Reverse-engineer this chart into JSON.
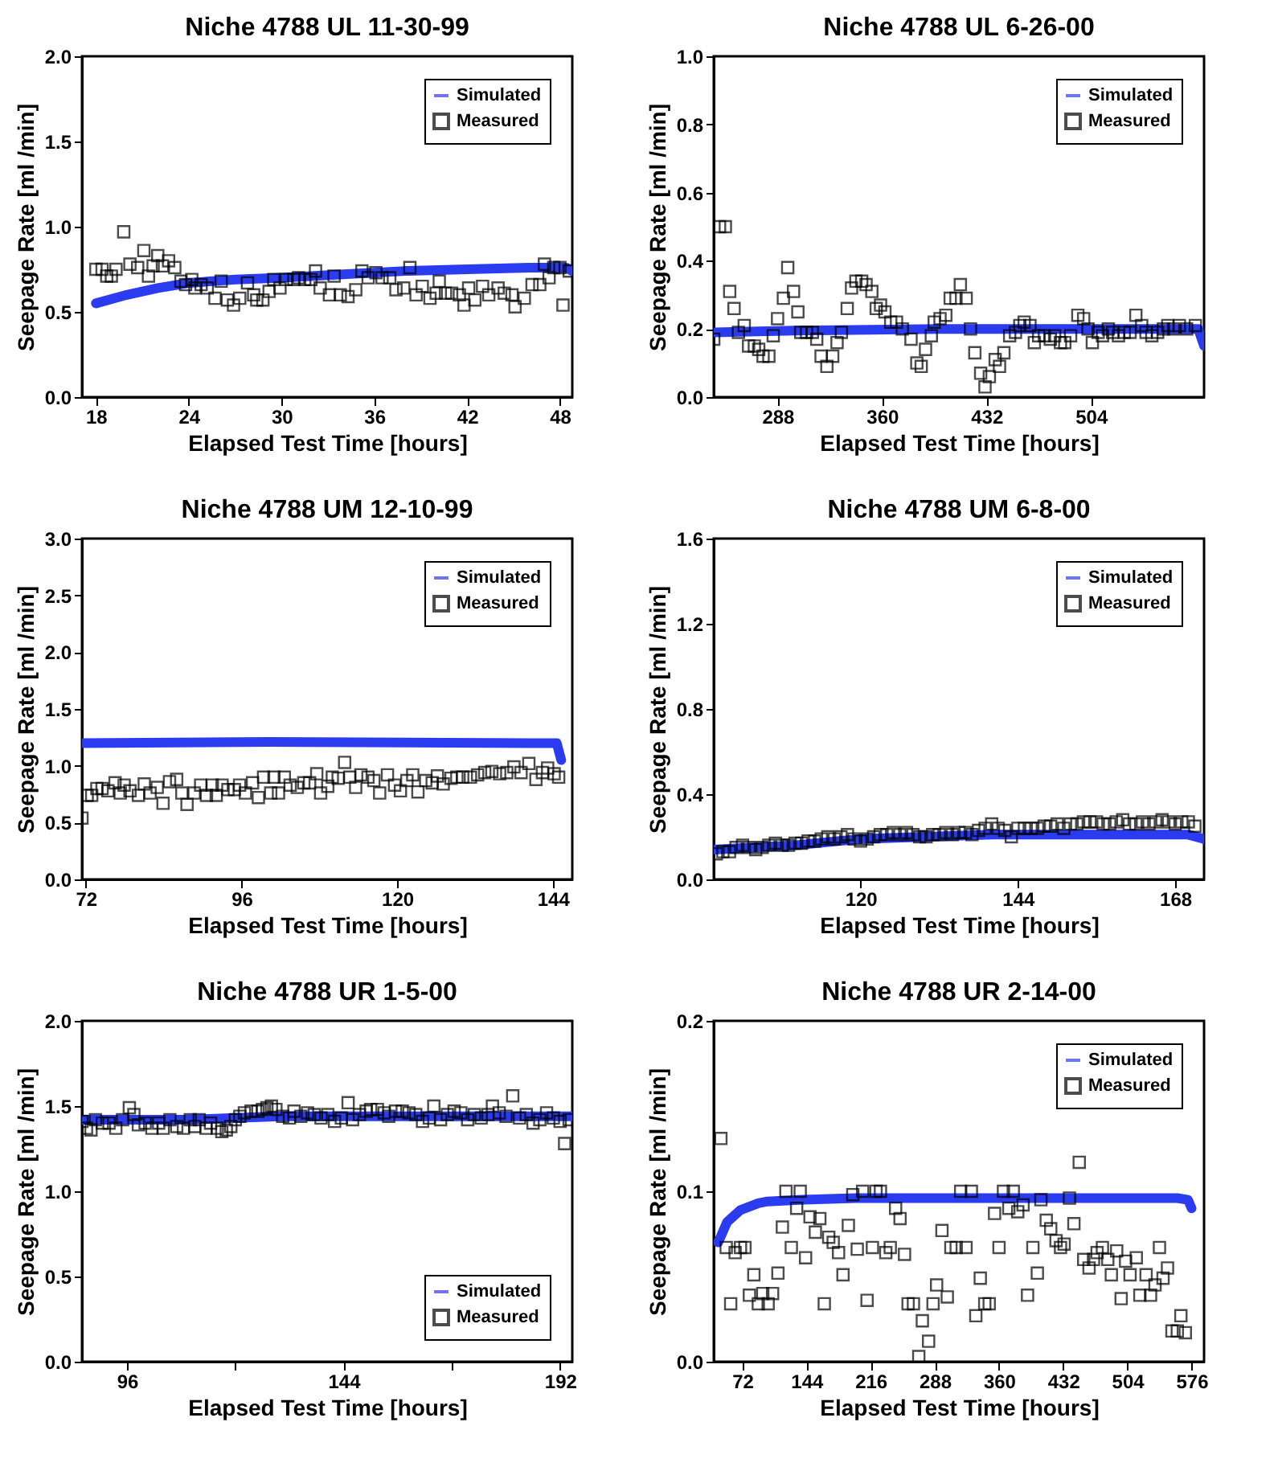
{
  "chart_data": [
    {
      "type": "line",
      "title": "Niche 4788 UL 11-30-99",
      "xlabel": "Elapsed Test Time [hours]",
      "ylabel": "Seepage Rate [ml /min]",
      "xlim": [
        17.1,
        48.8
      ],
      "xticks": [
        18,
        24,
        30,
        36,
        42,
        48
      ],
      "ylim": [
        0,
        2
      ],
      "yticks": [
        {
          "value": 0,
          "label": "0.0"
        },
        {
          "value": 0.5,
          "label": "0.5"
        },
        {
          "value": 1,
          "label": "1.0"
        },
        {
          "value": 1.5,
          "label": "1.5"
        },
        {
          "value": 2,
          "label": "2.0"
        }
      ],
      "legend": "top right",
      "line_style": "solid",
      "series": [
        {
          "name": "Simulated",
          "type": "line",
          "color": "#2b3bf0",
          "x": [
            18,
            20,
            22,
            24,
            27,
            30,
            34,
            38,
            42,
            46,
            48.4,
            48.8
          ],
          "values": [
            0.55,
            0.6,
            0.64,
            0.67,
            0.69,
            0.7,
            0.72,
            0.74,
            0.75,
            0.76,
            0.76,
            0.74
          ]
        },
        {
          "name": "Measured",
          "type": "scatter",
          "marker": "square",
          "color": "#000000",
          "x": [
            18,
            18.4,
            18.7,
            19,
            19.3,
            19.8,
            20.2,
            20.7,
            21.1,
            21.4,
            21.7,
            22,
            22.3,
            22.7,
            23.1,
            23.5,
            23.8,
            24.2,
            24.4,
            24.8,
            25.2,
            25.7,
            26.1,
            26.5,
            26.9,
            27.3,
            27.8,
            28.2,
            28.4,
            28.8,
            29.2,
            29.5,
            29.9,
            30.3,
            30.8,
            31.1,
            31.5,
            31.9,
            32.2,
            32.5,
            33.1,
            33.4,
            33.8,
            34.3,
            34.8,
            35.2,
            35.6,
            36.1,
            36.5,
            37,
            37.4,
            37.9,
            38.3,
            38.7,
            39.1,
            39.6,
            40,
            40.2,
            40.6,
            41,
            41.5,
            41.8,
            42.1,
            42.5,
            43,
            43.4,
            44,
            44.4,
            44.9,
            45.1,
            45.7,
            46.2,
            46.7,
            47,
            47.3,
            47.6,
            48,
            48.2,
            48.6
          ],
          "values": [
            0.75,
            0.75,
            0.71,
            0.71,
            0.75,
            0.97,
            0.78,
            0.76,
            0.86,
            0.71,
            0.77,
            0.83,
            0.77,
            0.8,
            0.76,
            0.68,
            0.66,
            0.69,
            0.64,
            0.66,
            0.64,
            0.58,
            0.68,
            0.57,
            0.54,
            0.58,
            0.67,
            0.6,
            0.57,
            0.57,
            0.62,
            0.69,
            0.64,
            0.69,
            0.69,
            0.7,
            0.69,
            0.69,
            0.74,
            0.64,
            0.6,
            0.71,
            0.6,
            0.59,
            0.63,
            0.74,
            0.7,
            0.73,
            0.7,
            0.7,
            0.63,
            0.64,
            0.76,
            0.6,
            0.65,
            0.58,
            0.61,
            0.68,
            0.61,
            0.61,
            0.6,
            0.54,
            0.64,
            0.57,
            0.65,
            0.6,
            0.64,
            0.61,
            0.6,
            0.53,
            0.58,
            0.66,
            0.66,
            0.78,
            0.7,
            0.76,
            0.76,
            0.54,
            0.74
          ]
        }
      ]
    },
    {
      "type": "line",
      "title": "Niche 4788 UL 6-26-00",
      "xlabel": "Elapsed Test Time [hours]",
      "ylabel": "Seepage Rate [ml /min]",
      "xlim": [
        244,
        582
      ],
      "xticks": [
        288,
        360,
        432,
        504
      ],
      "ylim": [
        0,
        1
      ],
      "yticks": [
        {
          "value": 0,
          "label": "0.0"
        },
        {
          "value": 0.2,
          "label": "0.2"
        },
        {
          "value": 0.4,
          "label": "0.4"
        },
        {
          "value": 0.6,
          "label": "0.6"
        },
        {
          "value": 0.8,
          "label": "0.8"
        },
        {
          "value": 1,
          "label": "1.0"
        }
      ],
      "legend": "top right",
      "line_style": "solid",
      "series": [
        {
          "name": "Simulated",
          "type": "line",
          "color": "#2b3bf0",
          "x": [
            244,
            300,
            400,
            500,
            578,
            582
          ],
          "values": [
            0.19,
            0.195,
            0.2,
            0.2,
            0.2,
            0.15
          ]
        },
        {
          "name": "Measured",
          "type": "scatter",
          "marker": "square",
          "color": "#000000",
          "x": [
            244,
            248,
            252,
            255,
            258,
            261,
            265,
            268,
            272,
            275,
            278,
            282,
            285,
            288,
            292,
            295,
            299,
            302,
            304,
            308,
            312,
            315,
            318,
            322,
            326,
            329,
            332,
            336,
            339,
            342,
            346,
            349,
            353,
            356,
            359,
            362,
            366,
            370,
            374,
            380,
            384,
            387,
            390,
            394,
            396,
            400,
            404,
            407,
            411,
            414,
            418,
            421,
            424,
            428,
            431,
            434,
            438,
            441,
            444,
            448,
            452,
            455,
            458,
            462,
            465,
            468,
            472,
            476,
            479,
            483,
            486,
            490,
            495,
            499,
            502,
            505,
            509,
            512,
            516,
            519,
            523,
            527,
            531,
            535,
            539,
            542,
            546,
            550,
            554,
            557,
            561,
            565,
            570,
            576
          ],
          "values": [
            0.17,
            0.5,
            0.5,
            0.31,
            0.26,
            0.19,
            0.21,
            0.15,
            0.15,
            0.14,
            0.12,
            0.12,
            0.18,
            0.23,
            0.29,
            0.38,
            0.31,
            0.25,
            0.19,
            0.19,
            0.19,
            0.17,
            0.12,
            0.09,
            0.12,
            0.16,
            0.19,
            0.26,
            0.32,
            0.34,
            0.34,
            0.33,
            0.31,
            0.26,
            0.27,
            0.25,
            0.22,
            0.22,
            0.2,
            0.17,
            0.1,
            0.09,
            0.14,
            0.18,
            0.22,
            0.23,
            0.24,
            0.29,
            0.29,
            0.33,
            0.29,
            0.2,
            0.13,
            0.07,
            0.03,
            0.06,
            0.11,
            0.09,
            0.13,
            0.18,
            0.19,
            0.21,
            0.22,
            0.21,
            0.16,
            0.18,
            0.18,
            0.17,
            0.18,
            0.16,
            0.16,
            0.18,
            0.24,
            0.23,
            0.2,
            0.16,
            0.19,
            0.18,
            0.2,
            0.19,
            0.18,
            0.19,
            0.19,
            0.24,
            0.21,
            0.19,
            0.18,
            0.19,
            0.2,
            0.21,
            0.2,
            0.21,
            0.2,
            0.21
          ]
        }
      ]
    },
    {
      "type": "line",
      "title": "Niche 4788 UM 12-10-99",
      "xlabel": "Elapsed Test Time [hours]",
      "ylabel": "Seepage Rate [ml /min]",
      "xlim": [
        71.4,
        147
      ],
      "xticks": [
        72,
        96,
        120,
        144
      ],
      "ylim": [
        0,
        3
      ],
      "yticks": [
        {
          "value": 0,
          "label": "0.0"
        },
        {
          "value": 0.5,
          "label": "0.5"
        },
        {
          "value": 1,
          "label": "1.0"
        },
        {
          "value": 1.5,
          "label": "1.5"
        },
        {
          "value": 2,
          "label": "2.0"
        },
        {
          "value": 2.5,
          "label": "2.5"
        },
        {
          "value": 3,
          "label": "3.0"
        }
      ],
      "legend": "top right",
      "line_style": "solid",
      "series": [
        {
          "name": "Simulated",
          "type": "line",
          "color": "#2b3bf0",
          "x": [
            71.4,
            100,
            140,
            144.6,
            145.3
          ],
          "values": [
            1.2,
            1.21,
            1.2,
            1.2,
            1.05
          ]
        },
        {
          "name": "Measured",
          "type": "scatter",
          "marker": "square",
          "color": "#000000",
          "x": [
            71.4,
            72.2,
            72.9,
            73.7,
            74.5,
            75.4,
            76.5,
            77.3,
            77.9,
            78.8,
            80.1,
            81,
            81.9,
            83,
            83.9,
            84.9,
            86,
            86.8,
            87.6,
            88.7,
            89.7,
            90.6,
            91.5,
            92.1,
            93,
            93.9,
            94.9,
            95.7,
            96.6,
            97.7,
            98.6,
            99.4,
            100.5,
            101,
            101.7,
            102.6,
            103.5,
            104.6,
            105.6,
            106.5,
            107.6,
            108.2,
            109.3,
            110,
            110.9,
            111.9,
            112.7,
            113.6,
            114.4,
            115.5,
            116.4,
            117.3,
            118.5,
            119.6,
            120.5,
            121.5,
            122.4,
            123.2,
            124.4,
            125.4,
            126.2,
            127.1,
            128.3,
            129.2,
            130.1,
            131.3,
            132.4,
            133.5,
            134.6,
            135.8,
            136.9,
            138,
            139.1,
            140.3,
            141.4,
            142.4,
            143.2,
            144.2,
            144.9
          ],
          "values": [
            0.54,
            0.74,
            0.74,
            0.8,
            0.8,
            0.78,
            0.85,
            0.76,
            0.83,
            0.78,
            0.74,
            0.84,
            0.76,
            0.81,
            0.67,
            0.86,
            0.88,
            0.76,
            0.66,
            0.76,
            0.83,
            0.74,
            0.83,
            0.74,
            0.83,
            0.79,
            0.79,
            0.83,
            0.76,
            0.85,
            0.72,
            0.9,
            0.76,
            0.9,
            0.76,
            0.9,
            0.83,
            0.81,
            0.85,
            0.85,
            0.93,
            0.76,
            0.82,
            0.9,
            0.89,
            1.03,
            0.9,
            0.81,
            0.92,
            0.9,
            0.87,
            0.76,
            0.92,
            0.83,
            0.78,
            0.87,
            0.92,
            0.77,
            0.87,
            0.85,
            0.91,
            0.84,
            0.89,
            0.9,
            0.9,
            0.9,
            0.92,
            0.94,
            0.95,
            0.93,
            0.94,
            0.99,
            0.94,
            1.02,
            0.88,
            0.94,
            0.98,
            0.93,
            0.9
          ]
        }
      ]
    },
    {
      "type": "line",
      "title": "Niche 4788 UM 6-8-00",
      "xlabel": "Elapsed Test Time [hours]",
      "ylabel": "Seepage Rate [ml /min]",
      "xlim": [
        97.6,
        172.4
      ],
      "xticks": [
        120,
        144,
        168
      ],
      "ylim": [
        0,
        1.6
      ],
      "yticks": [
        {
          "value": 0,
          "label": "0.0"
        },
        {
          "value": 0.4,
          "label": "0.4"
        },
        {
          "value": 0.8,
          "label": "0.8"
        },
        {
          "value": 1.2,
          "label": "1.2"
        },
        {
          "value": 1.6,
          "label": "1.6"
        }
      ],
      "legend": "top right",
      "line_style": "solid",
      "series": [
        {
          "name": "Simulated",
          "type": "line",
          "color": "#2b3bf0",
          "x": [
            97.6,
            110,
            120,
            130,
            140,
            150,
            160,
            170,
            172.4
          ],
          "values": [
            0.14,
            0.16,
            0.19,
            0.2,
            0.21,
            0.21,
            0.21,
            0.21,
            0.19
          ]
        },
        {
          "name": "Measured",
          "type": "scatter",
          "marker": "square",
          "color": "#000000",
          "x": [
            98,
            99,
            100,
            101,
            102,
            103,
            104,
            105,
            106,
            107,
            108,
            109,
            110,
            111,
            112,
            113,
            114,
            115,
            116,
            117,
            118,
            119,
            120,
            121,
            122,
            123,
            124,
            125,
            126,
            127,
            128,
            129,
            130,
            131,
            132,
            133,
            134,
            135,
            136,
            137,
            138,
            139,
            140,
            141,
            142,
            143,
            144,
            145,
            146,
            147,
            148,
            149,
            150,
            151,
            152,
            153,
            154,
            155,
            156,
            157,
            158,
            159,
            160,
            161,
            162,
            163,
            164,
            165,
            166,
            167,
            168,
            169,
            170,
            171
          ],
          "values": [
            0.12,
            0.13,
            0.13,
            0.15,
            0.16,
            0.15,
            0.14,
            0.15,
            0.16,
            0.17,
            0.16,
            0.16,
            0.17,
            0.17,
            0.18,
            0.18,
            0.19,
            0.2,
            0.19,
            0.2,
            0.21,
            0.19,
            0.18,
            0.19,
            0.2,
            0.21,
            0.21,
            0.22,
            0.21,
            0.22,
            0.21,
            0.2,
            0.2,
            0.21,
            0.21,
            0.22,
            0.21,
            0.22,
            0.22,
            0.21,
            0.23,
            0.24,
            0.26,
            0.24,
            0.23,
            0.2,
            0.24,
            0.24,
            0.24,
            0.24,
            0.25,
            0.25,
            0.26,
            0.24,
            0.26,
            0.26,
            0.27,
            0.27,
            0.27,
            0.26,
            0.26,
            0.27,
            0.28,
            0.26,
            0.26,
            0.27,
            0.26,
            0.27,
            0.28,
            0.27,
            0.26,
            0.27,
            0.27,
            0.25
          ]
        }
      ]
    },
    {
      "type": "line",
      "title": "Niche 4788 UR 1-5-00",
      "xlabel": "Elapsed Test Time [hours]",
      "ylabel": "Seepage Rate [ml /min]",
      "xlim": [
        86,
        194.7
      ],
      "xticks": [
        96,
        {
          "value": 120,
          "label": null
        },
        144,
        {
          "value": 168,
          "label": null
        },
        192
      ],
      "ylim": [
        0,
        2
      ],
      "yticks": [
        {
          "value": 0,
          "label": "0.0"
        },
        {
          "value": 0.5,
          "label": "0.5"
        },
        {
          "value": 1,
          "label": "1.0"
        },
        {
          "value": 1.5,
          "label": "1.5"
        },
        {
          "value": 2,
          "label": "2.0"
        }
      ],
      "legend": "bottom right",
      "line_style": "solid",
      "series": [
        {
          "name": "Simulated",
          "type": "line",
          "color": "#2b3bf0",
          "x": [
            86,
            110,
            120,
            130,
            160,
            194.7
          ],
          "values": [
            1.42,
            1.42,
            1.43,
            1.44,
            1.44,
            1.44
          ]
        },
        {
          "name": "Measured",
          "type": "scatter",
          "marker": "square",
          "color": "#000000",
          "x": [
            86,
            87,
            88,
            89,
            90.5,
            92,
            93.5,
            95,
            96.5,
            97.5,
            98.5,
            100,
            101.5,
            103,
            104,
            105.5,
            107,
            108.5,
            110,
            111,
            112,
            113.5,
            114.5,
            116,
            117,
            118,
            119,
            120,
            121,
            122,
            123.5,
            125,
            126,
            127,
            128,
            129,
            130.5,
            132,
            133,
            134.5,
            136,
            137.5,
            139,
            140.5,
            142,
            143.5,
            145,
            146,
            147.5,
            149,
            150,
            151.5,
            153,
            154,
            155.5,
            157,
            158.5,
            160,
            161.5,
            163,
            164,
            165.5,
            167,
            168.5,
            170,
            171.5,
            173,
            174.5,
            176,
            177,
            178.5,
            180,
            181.5,
            183,
            184.5,
            186,
            187.5,
            189,
            190.5,
            192,
            193,
            194
          ],
          "values": [
            1.41,
            1.37,
            1.36,
            1.42,
            1.4,
            1.4,
            1.37,
            1.42,
            1.49,
            1.45,
            1.39,
            1.4,
            1.37,
            1.4,
            1.37,
            1.42,
            1.38,
            1.37,
            1.42,
            1.38,
            1.42,
            1.37,
            1.4,
            1.37,
            1.35,
            1.36,
            1.38,
            1.42,
            1.44,
            1.46,
            1.47,
            1.47,
            1.48,
            1.49,
            1.5,
            1.48,
            1.44,
            1.43,
            1.47,
            1.44,
            1.46,
            1.45,
            1.43,
            1.45,
            1.41,
            1.43,
            1.52,
            1.42,
            1.45,
            1.47,
            1.48,
            1.48,
            1.46,
            1.44,
            1.47,
            1.47,
            1.46,
            1.45,
            1.41,
            1.43,
            1.5,
            1.42,
            1.45,
            1.47,
            1.46,
            1.42,
            1.45,
            1.43,
            1.45,
            1.5,
            1.46,
            1.44,
            1.56,
            1.43,
            1.45,
            1.4,
            1.42,
            1.46,
            1.43,
            1.41,
            1.28,
            1.42
          ]
        }
      ]
    },
    {
      "type": "line",
      "title": "Niche 4788 UR 2-14-00",
      "xlabel": "Elapsed Test Time [hours]",
      "ylabel": "Seepage Rate [ml /min]",
      "xlim": [
        40,
        590
      ],
      "xticks": [
        72,
        144,
        216,
        288,
        360,
        432,
        504,
        576
      ],
      "ylim": [
        0,
        0.2
      ],
      "yticks": [
        {
          "value": 0,
          "label": "0.0"
        },
        {
          "value": 0.1,
          "label": "0.1"
        },
        {
          "value": 0.2,
          "label": "0.2"
        }
      ],
      "legend": "top right",
      "line_style": "solid",
      "series": [
        {
          "name": "Simulated",
          "type": "line",
          "color": "#2b3bf0",
          "x": [
            45,
            55,
            70,
            90,
            100,
            140,
            200,
            400,
            560,
            572,
            576
          ],
          "values": [
            0.07,
            0.082,
            0.089,
            0.093,
            0.094,
            0.095,
            0.096,
            0.096,
            0.096,
            0.095,
            0.09
          ]
        },
        {
          "name": "Measured",
          "type": "scatter",
          "marker": "square",
          "color": "#000000",
          "x": [
            48,
            54,
            59,
            64,
            70,
            75,
            80,
            85,
            90,
            95,
            101,
            106,
            112,
            117,
            121,
            127,
            133,
            137,
            143,
            148,
            154,
            159,
            164,
            169,
            174,
            180,
            185,
            191,
            196,
            201,
            207,
            212,
            218,
            222,
            227,
            233,
            238,
            244,
            249,
            254,
            258,
            264,
            270,
            274,
            281,
            286,
            290,
            296,
            302,
            306,
            312,
            317,
            323,
            329,
            334,
            339,
            344,
            349,
            355,
            360,
            365,
            371,
            376,
            381,
            387,
            392,
            398,
            403,
            407,
            413,
            418,
            424,
            429,
            433,
            439,
            444,
            450,
            455,
            461,
            466,
            470,
            476,
            482,
            486,
            492,
            497,
            502,
            507,
            514,
            518,
            525,
            530,
            535,
            540,
            544,
            549,
            554,
            560,
            564,
            569
          ],
          "values": [
            0.131,
            0.067,
            0.034,
            0.064,
            0.067,
            0.067,
            0.039,
            0.051,
            0.034,
            0.04,
            0.034,
            0.04,
            0.052,
            0.079,
            0.1,
            0.067,
            0.09,
            0.1,
            0.061,
            0.085,
            0.076,
            0.084,
            0.034,
            0.073,
            0.07,
            0.064,
            0.051,
            0.08,
            0.098,
            0.066,
            0.1,
            0.036,
            0.067,
            0.1,
            0.1,
            0.064,
            0.067,
            0.09,
            0.084,
            0.063,
            0.034,
            0.034,
            0.003,
            0.024,
            0.012,
            0.034,
            0.045,
            0.077,
            0.038,
            0.067,
            0.067,
            0.1,
            0.067,
            0.1,
            0.027,
            0.049,
            0.034,
            0.034,
            0.087,
            0.067,
            0.1,
            0.09,
            0.1,
            0.088,
            0.092,
            0.039,
            0.067,
            0.052,
            0.095,
            0.083,
            0.078,
            0.071,
            0.067,
            0.069,
            0.096,
            0.081,
            0.117,
            0.06,
            0.055,
            0.06,
            0.064,
            0.067,
            0.06,
            0.051,
            0.065,
            0.037,
            0.059,
            0.051,
            0.061,
            0.039,
            0.051,
            0.039,
            0.045,
            0.067,
            0.049,
            0.055,
            0.018,
            0.018,
            0.027,
            0.017
          ]
        }
      ]
    }
  ]
}
